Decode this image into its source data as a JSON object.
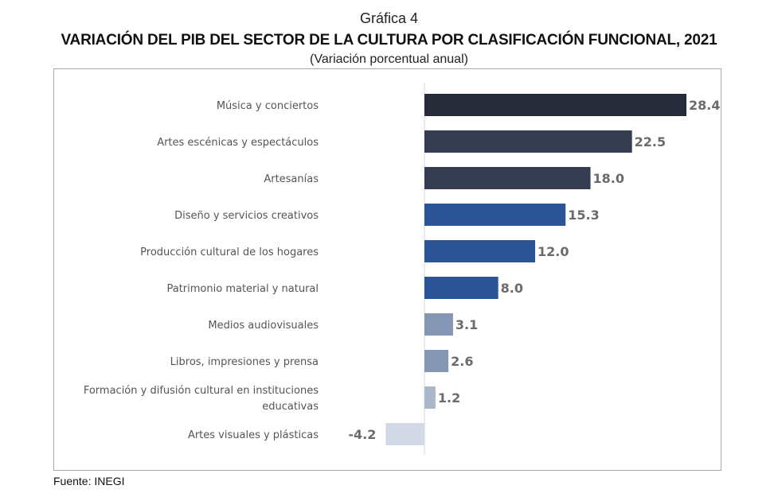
{
  "chart_data": {
    "type": "bar",
    "orientation": "horizontal",
    "supertitle": "Gráfica 4",
    "title": "VARIACIÓN DEL PIB DEL SECTOR DE LA CULTURA POR CLASIFICACIÓN FUNCIONAL, 2021",
    "subtitle": "(Variación porcentual anual)",
    "categories": [
      [
        "Música y conciertos"
      ],
      [
        "Artes escénicas y espectáculos"
      ],
      [
        "Artesanías"
      ],
      [
        "Diseño y servicios creativos"
      ],
      [
        "Producción cultural de los hogares"
      ],
      [
        "Patrimonio material y natural"
      ],
      [
        "Medios audiovisuales"
      ],
      [
        "Libros, impresiones y prensa"
      ],
      [
        "Formación y difusión cultural en instituciones",
        "educativas"
      ],
      [
        "Artes visuales y plásticas"
      ]
    ],
    "values": [
      28.4,
      22.5,
      18.0,
      15.3,
      12.0,
      8.0,
      3.1,
      2.6,
      1.2,
      -4.2
    ],
    "value_labels": [
      "28.4",
      "22.5",
      "18.0",
      "15.3",
      "12.0",
      "8.0",
      "3.1",
      "2.6",
      "1.2",
      "-4.2"
    ],
    "colors": [
      "#252b38",
      "#343d4f",
      "#343d4f",
      "#2d5497",
      "#2d5497",
      "#2d5497",
      "#8597b3",
      "#8597b3",
      "#a9b6cc",
      "#d3dae6"
    ],
    "xlabel": "",
    "ylabel": "",
    "xlim": [
      -4.2,
      28.4
    ],
    "grid": false,
    "source": "Fuente: INEGI"
  }
}
